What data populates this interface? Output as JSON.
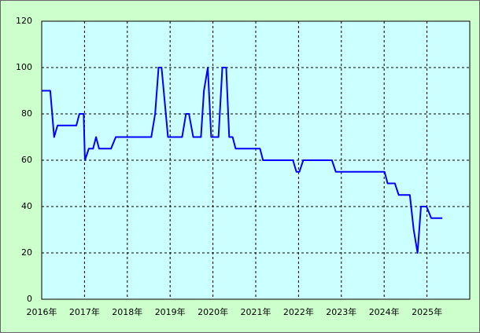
{
  "chart_data": {
    "type": "line",
    "x": [
      2016.0,
      2016.2,
      2016.29,
      2016.37,
      2016.81,
      2016.88,
      2016.98,
      2017.01,
      2017.1,
      2017.2,
      2017.27,
      2017.34,
      2017.62,
      2017.73,
      2018.56,
      2018.65,
      2018.73,
      2018.8,
      2018.95,
      2019.28,
      2019.37,
      2019.44,
      2019.54,
      2019.72,
      2019.79,
      2019.88,
      2019.96,
      2020.13,
      2020.22,
      2020.31,
      2020.38,
      2020.46,
      2020.53,
      2021.1,
      2021.17,
      2021.87,
      2021.95,
      2022.02,
      2022.11,
      2022.78,
      2022.87,
      2024.01,
      2024.08,
      2024.25,
      2024.34,
      2024.6,
      2024.69,
      2024.78,
      2024.86,
      2024.99,
      2025.1,
      2025.36
    ],
    "series": [
      {
        "color": "#0000ff",
        "values": [
          90,
          90,
          70,
          75,
          75,
          80,
          80,
          60,
          65,
          65,
          70,
          65,
          65,
          70,
          70,
          80,
          100,
          100,
          70,
          70,
          80,
          80,
          70,
          70,
          90,
          100,
          70,
          70,
          100,
          100,
          70,
          70,
          65,
          65,
          60,
          60,
          55,
          55,
          60,
          60,
          55,
          55,
          50,
          50,
          45,
          45,
          30,
          20,
          40,
          40,
          35,
          35
        ]
      }
    ],
    "xlim": [
      2016,
      2026
    ],
    "xticks": [
      {
        "value": 2016,
        "label": "2016年"
      },
      {
        "value": 2017,
        "label": "2017年"
      },
      {
        "value": 2018,
        "label": "2018年"
      },
      {
        "value": 2019,
        "label": "2019年"
      },
      {
        "value": 2020,
        "label": "2020年"
      },
      {
        "value": 2021,
        "label": "2021年"
      },
      {
        "value": 2022,
        "label": "2022年"
      },
      {
        "value": 2023,
        "label": "2023年"
      },
      {
        "value": 2024,
        "label": "2024年"
      },
      {
        "value": 2025,
        "label": "2025年"
      }
    ],
    "ylim": [
      0,
      120
    ],
    "yticks": [
      0,
      20,
      40,
      60,
      80,
      100,
      120
    ],
    "grid": true
  }
}
